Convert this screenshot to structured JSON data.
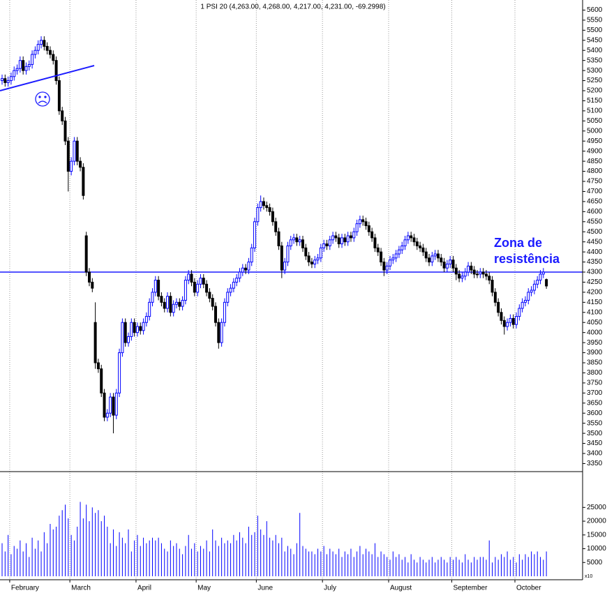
{
  "chart_data": {
    "type": "candlestick",
    "title": "1 PSI 20 (4,263.00, 4,268.00, 4,217.00, 4,231.00, -69.2998)",
    "categories": [
      null,
      null,
      null,
      "February",
      null,
      null,
      null,
      null,
      null,
      null,
      null,
      null,
      null,
      null,
      null,
      null,
      null,
      null,
      null,
      null,
      null,
      null,
      null,
      "March",
      null,
      null,
      null,
      null,
      null,
      null,
      null,
      null,
      null,
      null,
      null,
      null,
      null,
      null,
      null,
      null,
      null,
      null,
      null,
      null,
      null,
      "April",
      null,
      null,
      null,
      null,
      null,
      null,
      null,
      null,
      null,
      null,
      null,
      null,
      null,
      null,
      null,
      null,
      null,
      null,
      null,
      "May",
      null,
      null,
      null,
      null,
      null,
      null,
      null,
      null,
      null,
      null,
      null,
      null,
      null,
      null,
      null,
      null,
      null,
      null,
      null,
      "June",
      null,
      null,
      null,
      null,
      null,
      null,
      null,
      null,
      null,
      null,
      null,
      null,
      null,
      null,
      null,
      null,
      null,
      null,
      null,
      null,
      null,
      "July",
      null,
      null,
      null,
      null,
      null,
      null,
      null,
      null,
      null,
      null,
      null,
      null,
      null,
      null,
      null,
      null,
      null,
      null,
      null,
      null,
      null,
      "August",
      null,
      null,
      null,
      null,
      null,
      null,
      null,
      null,
      null,
      null,
      null,
      null,
      null,
      null,
      null,
      null,
      null,
      null,
      null,
      null,
      "September",
      null,
      null,
      null,
      null,
      null,
      null,
      null,
      null,
      null,
      null,
      null,
      null,
      null,
      null,
      null,
      null,
      null,
      null,
      null,
      null,
      "October",
      null,
      null,
      null,
      null,
      null,
      null,
      null,
      null,
      null,
      null
    ],
    "open": [
      5250,
      5260,
      5240,
      5250,
      5270,
      5300,
      5310,
      5350,
      5300,
      5320,
      5330,
      5380,
      5400,
      5430,
      5450,
      5420,
      5400,
      5380,
      5350,
      5250,
      5100,
      5050,
      4950,
      4800,
      4850,
      4950,
      4850,
      4820,
      4480,
      4300,
      4250,
      4050,
      3850,
      3820,
      3700,
      3580,
      3600,
      3680,
      3590,
      3700,
      3900,
      4050,
      3950,
      3980,
      4050,
      4000,
      4030,
      4010,
      4050,
      4080,
      4150,
      4200,
      4260,
      4180,
      4150,
      4120,
      4180,
      4100,
      4140,
      4150,
      4130,
      4160,
      4260,
      4290,
      4250,
      4200,
      4240,
      4270,
      4240,
      4200,
      4170,
      4130,
      4050,
      3950,
      4050,
      4150,
      4200,
      4220,
      4250,
      4270,
      4300,
      4320,
      4310,
      4350,
      4420,
      4550,
      4620,
      4650,
      4630,
      4620,
      4600,
      4550,
      4500,
      4430,
      4310,
      4350,
      4430,
      4460,
      4470,
      4450,
      4460,
      4420,
      4380,
      4350,
      4340,
      4360,
      4370,
      4420,
      4440,
      4430,
      4460,
      4480,
      4470,
      4440,
      4470,
      4450,
      4480,
      4470,
      4500,
      4540,
      4560,
      4550,
      4530,
      4500,
      4470,
      4420,
      4400,
      4350,
      4310,
      4330,
      4360,
      4370,
      4390,
      4410,
      4430,
      4460,
      4480,
      4470,
      4450,
      4430,
      4420,
      4400,
      4370,
      4350,
      4380,
      4390,
      4370,
      4350,
      4320,
      4340,
      4360,
      4320,
      4290,
      4270,
      4280,
      4300,
      4330,
      4310,
      4290,
      4290,
      4300,
      4290,
      4280,
      4260,
      4200,
      4150,
      4100,
      4060,
      4030,
      4050,
      4070,
      4040,
      4080,
      4120,
      4150,
      4160,
      4200,
      4210,
      4240,
      4260,
      4290,
      4263
    ],
    "high": [
      5280,
      5280,
      5270,
      5290,
      5320,
      5330,
      5370,
      5370,
      5340,
      5350,
      5400,
      5420,
      5450,
      5470,
      5470,
      5440,
      5420,
      5400,
      5370,
      5270,
      5120,
      5070,
      4970,
      4870,
      4970,
      4970,
      4870,
      4840,
      4500,
      4320,
      4270,
      4150,
      3870,
      3840,
      3720,
      3620,
      3700,
      3700,
      3720,
      3920,
      4070,
      4070,
      4000,
      4070,
      4070,
      4050,
      4050,
      4070,
      4100,
      4170,
      4220,
      4280,
      4280,
      4200,
      4170,
      4200,
      4200,
      4160,
      4170,
      4170,
      4180,
      4280,
      4310,
      4310,
      4270,
      4260,
      4290,
      4290,
      4260,
      4220,
      4190,
      4150,
      4070,
      4070,
      4170,
      4220,
      4240,
      4270,
      4290,
      4320,
      4340,
      4340,
      4370,
      4440,
      4570,
      4640,
      4680,
      4670,
      4650,
      4640,
      4620,
      4570,
      4520,
      4450,
      4370,
      4450,
      4480,
      4490,
      4490,
      4480,
      4480,
      4440,
      4400,
      4370,
      4380,
      4390,
      4440,
      4460,
      4460,
      4480,
      4500,
      4500,
      4490,
      4490,
      4490,
      4500,
      4500,
      4520,
      4560,
      4580,
      4580,
      4570,
      4550,
      4520,
      4490,
      4440,
      4420,
      4370,
      4350,
      4380,
      4390,
      4410,
      4430,
      4450,
      4480,
      4500,
      4500,
      4490,
      4470,
      4450,
      4440,
      4420,
      4390,
      4400,
      4410,
      4410,
      4390,
      4370,
      4360,
      4380,
      4380,
      4340,
      4310,
      4300,
      4320,
      4350,
      4350,
      4330,
      4310,
      4320,
      4320,
      4310,
      4300,
      4280,
      4220,
      4170,
      4120,
      4080,
      4070,
      4090,
      4090,
      4100,
      4140,
      4170,
      4180,
      4220,
      4230,
      4260,
      4280,
      4310,
      4320,
      4268
    ],
    "low": [
      5230,
      5220,
      5220,
      5230,
      5250,
      5280,
      5290,
      5280,
      5280,
      5300,
      5310,
      5360,
      5380,
      5410,
      5400,
      5380,
      5360,
      5330,
      5230,
      5080,
      5030,
      4930,
      4700,
      4780,
      4830,
      4830,
      4800,
      4660,
      4280,
      4230,
      4200,
      3820,
      3800,
      3680,
      3560,
      3560,
      3580,
      3500,
      3570,
      3680,
      3880,
      3930,
      3930,
      3960,
      3980,
      3980,
      3990,
      3990,
      4030,
      4060,
      4130,
      4180,
      4160,
      4130,
      4100,
      4100,
      4080,
      4080,
      4120,
      4110,
      4110,
      4140,
      4240,
      4230,
      4180,
      4180,
      4220,
      4220,
      4180,
      4150,
      4110,
      4030,
      3920,
      3930,
      4030,
      4130,
      4180,
      4200,
      4230,
      4250,
      4280,
      4290,
      4290,
      4330,
      4400,
      4530,
      4600,
      4610,
      4600,
      4580,
      4530,
      4480,
      4410,
      4270,
      4290,
      4330,
      4410,
      4440,
      4430,
      4430,
      4400,
      4360,
      4330,
      4320,
      4320,
      4340,
      4350,
      4400,
      4410,
      4410,
      4440,
      4450,
      4420,
      4420,
      4430,
      4430,
      4450,
      4450,
      4480,
      4520,
      4530,
      4510,
      4480,
      4450,
      4400,
      4380,
      4330,
      4280,
      4290,
      4310,
      4340,
      4350,
      4370,
      4390,
      4410,
      4440,
      4450,
      4430,
      4410,
      4400,
      4380,
      4350,
      4330,
      4330,
      4360,
      4350,
      4330,
      4300,
      4300,
      4320,
      4300,
      4260,
      4250,
      4250,
      4260,
      4280,
      4290,
      4270,
      4270,
      4270,
      4270,
      4260,
      4240,
      4180,
      4130,
      4080,
      4040,
      3990,
      4010,
      4030,
      4020,
      4020,
      4060,
      4100,
      4130,
      4140,
      4180,
      4190,
      4220,
      4240,
      4270,
      4217
    ],
    "close": [
      5260,
      5240,
      5250,
      5270,
      5300,
      5310,
      5350,
      5300,
      5320,
      5330,
      5380,
      5400,
      5430,
      5450,
      5420,
      5400,
      5380,
      5350,
      5250,
      5100,
      5050,
      4950,
      4800,
      4850,
      4950,
      4850,
      4820,
      4680,
      4300,
      4250,
      4220,
      3850,
      3820,
      3700,
      3580,
      3600,
      3680,
      3590,
      3700,
      3900,
      4050,
      3950,
      3980,
      4050,
      4000,
      4030,
      4010,
      4050,
      4080,
      4150,
      4200,
      4260,
      4180,
      4150,
      4120,
      4180,
      4100,
      4140,
      4150,
      4130,
      4160,
      4260,
      4290,
      4250,
      4200,
      4240,
      4270,
      4240,
      4200,
      4170,
      4130,
      4050,
      3950,
      4050,
      4150,
      4200,
      4220,
      4250,
      4270,
      4300,
      4320,
      4310,
      4350,
      4420,
      4550,
      4620,
      4650,
      4630,
      4620,
      4600,
      4550,
      4500,
      4430,
      4310,
      4350,
      4430,
      4460,
      4470,
      4450,
      4460,
      4420,
      4380,
      4350,
      4340,
      4360,
      4370,
      4420,
      4440,
      4430,
      4460,
      4480,
      4470,
      4440,
      4470,
      4450,
      4480,
      4470,
      4500,
      4540,
      4560,
      4550,
      4530,
      4500,
      4470,
      4420,
      4400,
      4350,
      4310,
      4330,
      4360,
      4370,
      4390,
      4410,
      4430,
      4460,
      4480,
      4470,
      4450,
      4430,
      4420,
      4400,
      4370,
      4350,
      4380,
      4390,
      4370,
      4350,
      4320,
      4340,
      4360,
      4320,
      4290,
      4270,
      4280,
      4300,
      4330,
      4310,
      4290,
      4290,
      4300,
      4290,
      4280,
      4260,
      4200,
      4150,
      4100,
      4060,
      4030,
      4050,
      4070,
      4040,
      4080,
      4120,
      4150,
      4160,
      4200,
      4210,
      4240,
      4260,
      4290,
      4300,
      4231
    ],
    "volume": [
      12000,
      9000,
      15000,
      8000,
      11000,
      10000,
      13000,
      9000,
      12000,
      7000,
      14000,
      10000,
      13000,
      9000,
      16000,
      12000,
      19000,
      17000,
      18000,
      22000,
      24000,
      26000,
      21000,
      15000,
      13000,
      18000,
      27000,
      21000,
      26000,
      20000,
      25000,
      23000,
      24000,
      20000,
      22000,
      18000,
      12000,
      17000,
      11000,
      16000,
      14000,
      12000,
      17000,
      9000,
      13000,
      15000,
      11000,
      14000,
      12000,
      13000,
      14000,
      13000,
      14000,
      12000,
      10000,
      9000,
      13000,
      11000,
      12000,
      10000,
      8000,
      11000,
      15000,
      10000,
      12000,
      9000,
      11000,
      10000,
      13000,
      9000,
      17000,
      13000,
      11000,
      14000,
      12000,
      13000,
      12000,
      15000,
      13000,
      16000,
      14000,
      12000,
      18000,
      15000,
      16000,
      22000,
      17000,
      15000,
      20000,
      14000,
      13000,
      15000,
      12000,
      14000,
      9000,
      11000,
      10000,
      8000,
      12000,
      23000,
      11000,
      10000,
      9000,
      9000,
      8000,
      10000,
      9000,
      11000,
      8000,
      10000,
      9000,
      8000,
      10000,
      7000,
      9000,
      8000,
      10000,
      7000,
      9000,
      11000,
      8000,
      10000,
      9000,
      8000,
      12000,
      7000,
      9000,
      8000,
      7000,
      6000,
      9000,
      7000,
      8000,
      6000,
      7000,
      5000,
      8000,
      6000,
      5000,
      7000,
      6000,
      5000,
      6000,
      7000,
      5000,
      6000,
      7000,
      6000,
      5000,
      7000,
      6000,
      7000,
      6000,
      5000,
      8000,
      6000,
      5000,
      7000,
      6000,
      7000,
      7000,
      6000,
      13000,
      5000,
      7000,
      6000,
      8000,
      7000,
      9000,
      6000,
      7000,
      5000,
      8000,
      6000,
      8000,
      7000,
      9000,
      8000,
      9000,
      7000,
      6000,
      9000
    ],
    "up_color": "#0000ff",
    "down_color": "#000000",
    "ylim": [
      3310,
      5650
    ],
    "yticks": [
      3350,
      3400,
      3450,
      3500,
      3550,
      3600,
      3650,
      3700,
      3750,
      3800,
      3850,
      3900,
      3950,
      4000,
      4050,
      4100,
      4150,
      4200,
      4250,
      4300,
      4350,
      4400,
      4450,
      4500,
      4550,
      4600,
      4650,
      4700,
      4750,
      4800,
      4850,
      4900,
      4950,
      5000,
      5050,
      5100,
      5150,
      5200,
      5250,
      5300,
      5350,
      5400,
      5450,
      5500,
      5550,
      5600
    ],
    "volume_ylim": [
      0,
      38000
    ],
    "volume_yticks": [
      5000,
      10000,
      15000,
      20000,
      25000
    ],
    "volume_unit_label": "x10",
    "reference_line": 4300,
    "annotation": [
      "Zona de",
      "resistência"
    ],
    "grid": true
  }
}
